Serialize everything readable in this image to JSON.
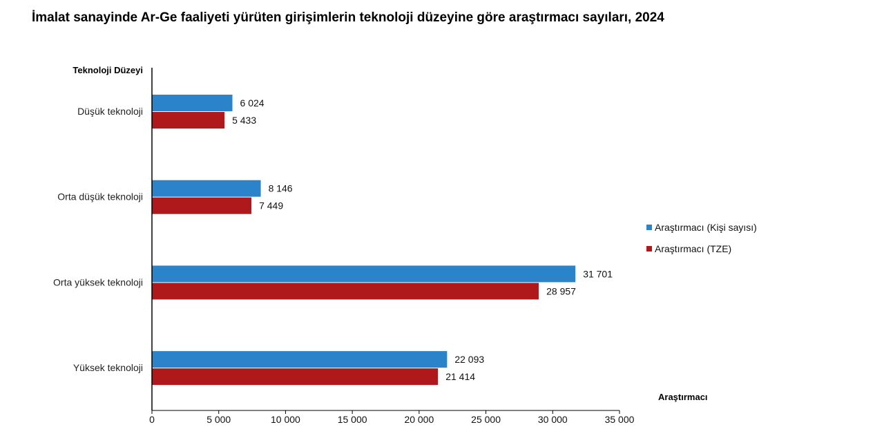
{
  "chart_data": {
    "type": "bar",
    "orientation": "horizontal",
    "title": "İmalat sanayinde Ar-Ge faaliyeti yürüten girişimlerin teknoloji düzeyine göre araştırmacı sayıları, 2024",
    "ylabel": "Teknoloji Düzeyi",
    "xlabel": "Araştırmacı",
    "categories": [
      "Düşük teknoloji",
      "Orta düşük teknoloji",
      "Orta yüksek teknoloji",
      "Yüksek teknoloji"
    ],
    "series": [
      {
        "name": "Araştırmacı (Kişi sayısı)",
        "color": "#2b84c9",
        "values": [
          6024,
          8146,
          31701,
          22093
        ],
        "labels": [
          "6 024",
          "8 146",
          "31 701",
          "22 093"
        ]
      },
      {
        "name": "Araştırmacı (TZE)",
        "color": "#b0191b",
        "values": [
          5433,
          7449,
          28957,
          21414
        ],
        "labels": [
          "5 433",
          "7 449",
          "28 957",
          "21 414"
        ]
      }
    ],
    "xlim": [
      0,
      35000
    ],
    "xticks": [
      0,
      5000,
      10000,
      15000,
      20000,
      25000,
      30000,
      35000
    ],
    "xtick_labels": [
      "0",
      "5 000",
      "10 000",
      "15 000",
      "20 000",
      "25 000",
      "30 000",
      "35 000"
    ],
    "grid": false,
    "legend_position": "right"
  }
}
